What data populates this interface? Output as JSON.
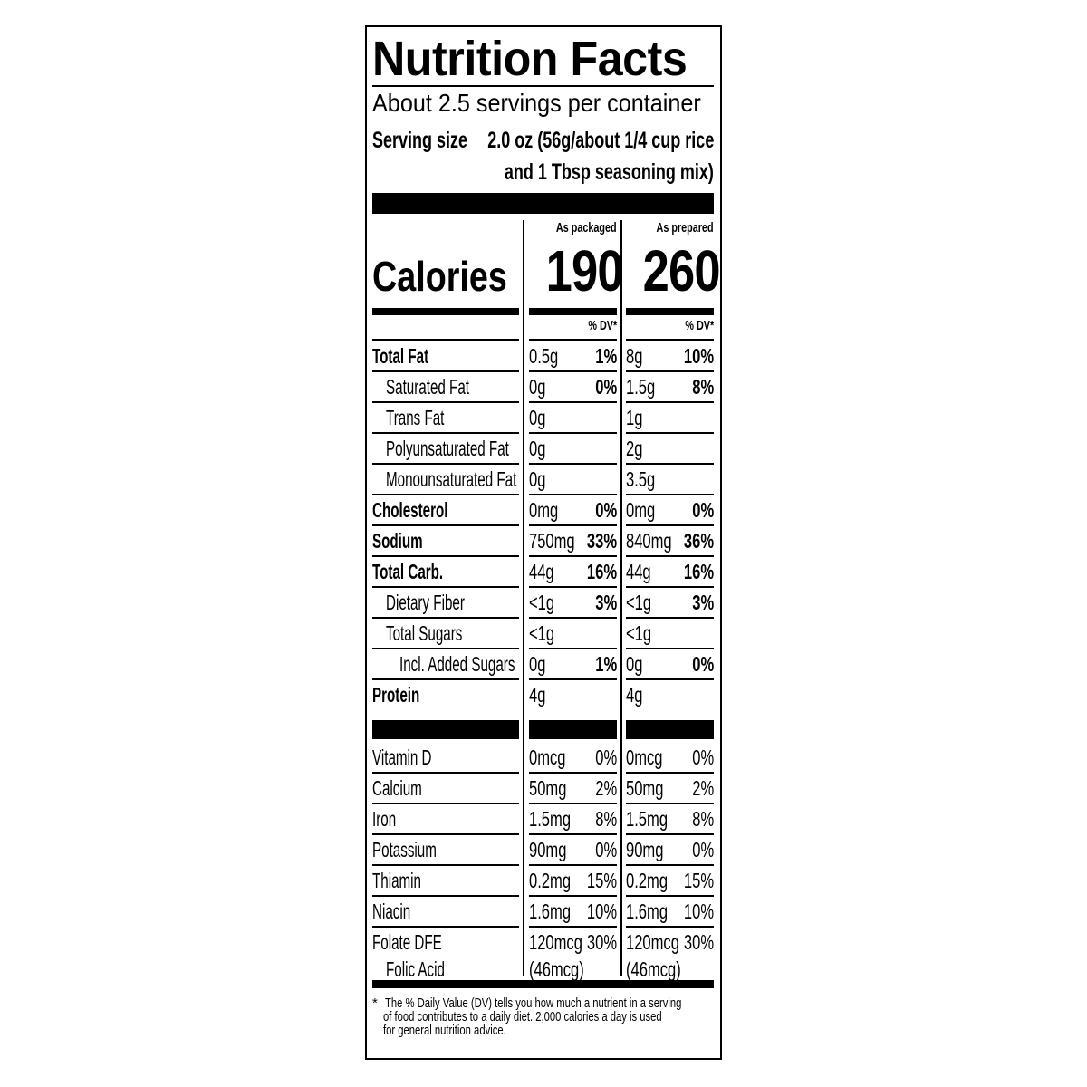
{
  "label": {
    "title": "Nutrition Facts",
    "servings": "About 2.5 servings per container",
    "serving_size_label": "Serving size",
    "serving_size_line1": "2.0 oz (56g/about 1/4 cup rice",
    "serving_size_line2": "and 1 Tbsp seasoning mix)",
    "col_packaged": "As packaged",
    "col_prepared": "As prepared",
    "calories_label": "Calories",
    "calories_packaged": "190",
    "calories_prepared": "260",
    "dv_header": "% DV*",
    "nutrients": [
      {
        "name": "Total Fat",
        "pa": "0.5g",
        "pd": "1%",
        "ra": "8g",
        "rd": "10%",
        "bold": true,
        "indent": 0
      },
      {
        "name": "Saturated Fat",
        "pa": "0g",
        "pd": "0%",
        "ra": "1.5g",
        "rd": "8%",
        "bold": false,
        "indent": 1
      },
      {
        "name": "Trans Fat",
        "pa": "0g",
        "pd": "",
        "ra": "1g",
        "rd": "",
        "bold": false,
        "indent": 1
      },
      {
        "name": "Polyunsaturated Fat",
        "pa": "0g",
        "pd": "",
        "ra": "2g",
        "rd": "",
        "bold": false,
        "indent": 1
      },
      {
        "name": "Monounsaturated Fat",
        "pa": "0g",
        "pd": "",
        "ra": "3.5g",
        "rd": "",
        "bold": false,
        "indent": 1
      },
      {
        "name": "Cholesterol",
        "pa": "0mg",
        "pd": "0%",
        "ra": "0mg",
        "rd": "0%",
        "bold": true,
        "indent": 0
      },
      {
        "name": "Sodium",
        "pa": "750mg",
        "pd": "33%",
        "ra": "840mg",
        "rd": "36%",
        "bold": true,
        "indent": 0
      },
      {
        "name": "Total Carb.",
        "pa": "44g",
        "pd": "16%",
        "ra": "44g",
        "rd": "16%",
        "bold": true,
        "indent": 0
      },
      {
        "name": "Dietary Fiber",
        "pa": "<1g",
        "pd": "3%",
        "ra": "<1g",
        "rd": "3%",
        "bold": false,
        "indent": 1
      },
      {
        "name": "Total Sugars",
        "pa": "<1g",
        "pd": "",
        "ra": "<1g",
        "rd": "",
        "bold": false,
        "indent": 1
      },
      {
        "name": "Incl. Added Sugars",
        "pa": "0g",
        "pd": "1%",
        "ra": "0g",
        "rd": "0%",
        "bold": false,
        "indent": 2
      },
      {
        "name": "Protein",
        "pa": "4g",
        "pd": "",
        "ra": "4g",
        "rd": "",
        "bold": true,
        "indent": 0
      }
    ],
    "vitamins": [
      {
        "name": "Vitamin D",
        "pa": "0mcg",
        "pd": "0%",
        "ra": "0mcg",
        "rd": "0%"
      },
      {
        "name": "Calcium",
        "pa": "50mg",
        "pd": "2%",
        "ra": "50mg",
        "rd": "2%"
      },
      {
        "name": "Iron",
        "pa": "1.5mg",
        "pd": "8%",
        "ra": "1.5mg",
        "rd": "8%"
      },
      {
        "name": "Potassium",
        "pa": "90mg",
        "pd": "0%",
        "ra": "90mg",
        "rd": "0%"
      },
      {
        "name": "Thiamin",
        "pa": "0.2mg",
        "pd": "15%",
        "ra": "0.2mg",
        "rd": "15%"
      },
      {
        "name": "Niacin",
        "pa": "1.6mg",
        "pd": "10%",
        "ra": "1.6mg",
        "rd": "10%"
      }
    ],
    "folate": {
      "name": "Folate DFE",
      "sub": "Folic Acid",
      "pa": "120mcg",
      "pd": "30%",
      "pa2": "(46mcg)",
      "ra": "120mcg",
      "rd": "30%",
      "ra2": "(46mcg)"
    },
    "footnote_star": "*",
    "footnote_lines": [
      "The % Daily Value (DV) tells you how much a nutrient in a serving",
      "of food contributes to a daily diet. 2,000 calories a day is used",
      "for general nutrition advice."
    ]
  }
}
